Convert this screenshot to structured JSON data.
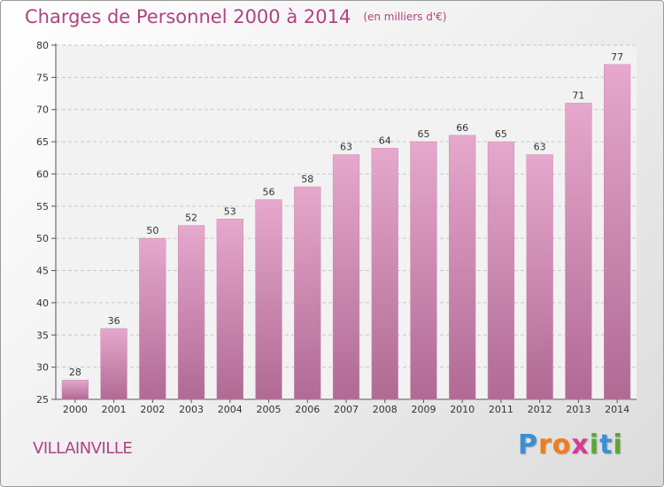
{
  "header": {
    "title": "Charges de Personnel 2000 à 2014",
    "subtitle": "(en milliers d'€)"
  },
  "footer": {
    "commune": "VILLAINVILLE",
    "logo_letters": [
      "P",
      "r",
      "o",
      "x",
      "i",
      "t",
      "i"
    ],
    "logo_colors": [
      "#3b8fd6",
      "#f07c1b",
      "#f07c1b",
      "#d43c8f",
      "#5aa832",
      "#3b8fd6",
      "#5aa832"
    ]
  },
  "colors": {
    "bar_top": "#e6a8cc",
    "bar_bottom": "#b06a94",
    "accent": "#b0437f"
  },
  "chart_data": {
    "type": "bar",
    "categories": [
      "2000",
      "2001",
      "2002",
      "2003",
      "2004",
      "2005",
      "2006",
      "2007",
      "2008",
      "2009",
      "2010",
      "2011",
      "2012",
      "2013",
      "2014"
    ],
    "values": [
      28,
      36,
      50,
      52,
      53,
      56,
      58,
      63,
      64,
      65,
      66,
      65,
      63,
      71,
      77
    ],
    "ylim": [
      25,
      80
    ],
    "yticks": [
      25,
      30,
      35,
      40,
      45,
      50,
      55,
      60,
      65,
      70,
      75,
      80
    ],
    "grid": true,
    "title": "Charges de Personnel 2000 à 2014",
    "xlabel": "",
    "ylabel": ""
  }
}
